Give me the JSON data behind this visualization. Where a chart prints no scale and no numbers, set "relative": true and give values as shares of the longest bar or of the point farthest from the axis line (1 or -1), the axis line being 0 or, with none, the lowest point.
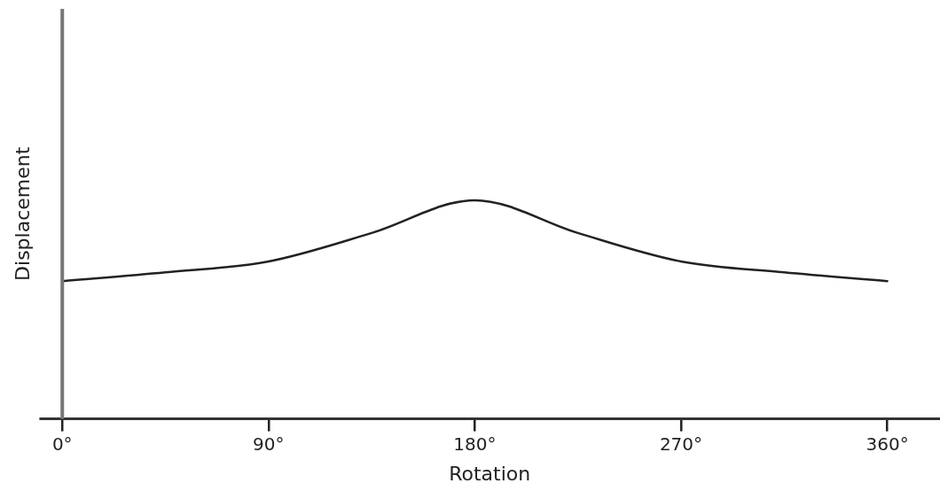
{
  "chart_data": {
    "type": "line",
    "xlabel": "Rotation",
    "ylabel": "Displacement",
    "relative": true,
    "x": [
      0,
      45,
      90,
      135,
      180,
      225,
      270,
      315,
      360
    ],
    "series": [
      {
        "color": "#222222",
        "values": [
          0.63,
          0.67,
          0.72,
          0.85,
          1.0,
          0.85,
          0.72,
          0.67,
          0.63
        ]
      }
    ],
    "xlim": [
      -10,
      383
    ],
    "xticks": [
      {
        "value": 0,
        "label": "0°"
      },
      {
        "value": 90,
        "label": "90°"
      },
      {
        "value": 180,
        "label": "180°"
      },
      {
        "value": 270,
        "label": "270°"
      },
      {
        "value": 360,
        "label": "360°"
      }
    ],
    "legend": false,
    "marker": "none",
    "line_style": "solid"
  }
}
